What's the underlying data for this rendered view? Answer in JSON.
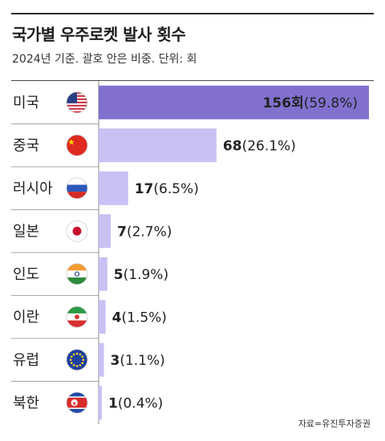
{
  "title": "국가별 우주로켓 발사 횟수",
  "subtitle": "2024년 기준. 괄호 안은 비중. 단위: 회",
  "source": "자료=유진투자증권",
  "colors": {
    "top_bar": "#8270cf",
    "other_bars": "#c9c0f4",
    "value_text_top": "#ffffff",
    "value_text": "#222222"
  },
  "chart_data": {
    "type": "bar",
    "orientation": "horizontal",
    "title": "국가별 우주로켓 발사 횟수",
    "subtitle": "2024년 기준. 괄호 안은 비중. 단위: 회",
    "unit": "회",
    "categories": [
      "미국",
      "중국",
      "러시아",
      "일본",
      "인도",
      "이란",
      "유럽",
      "북한"
    ],
    "values": [
      156,
      68,
      17,
      7,
      5,
      4,
      3,
      1
    ],
    "value_labels": [
      "156회",
      "68",
      "17",
      "7",
      "5",
      "4",
      "3",
      "1"
    ],
    "share_labels": [
      "(59.8%)",
      "(26.1%)",
      "(6.5%)",
      "(2.7%)",
      "(1.9%)",
      "(1.5%)",
      "(1.1%)",
      "(0.4%)"
    ],
    "flags": [
      "us-flag-icon",
      "china-flag-icon",
      "russia-flag-icon",
      "japan-flag-icon",
      "india-flag-icon",
      "iran-flag-icon",
      "eu-flag-icon",
      "north-korea-flag-icon"
    ],
    "xlim": [
      0,
      156
    ],
    "grid": false,
    "legend": "none"
  }
}
